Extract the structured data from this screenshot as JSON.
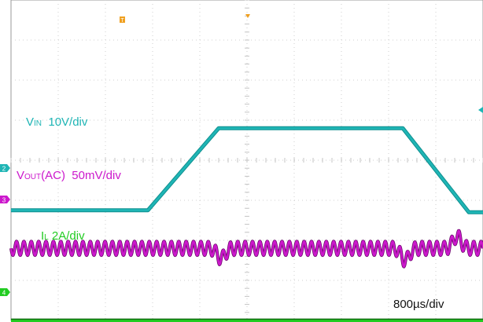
{
  "chart_data": {
    "type": "line",
    "title": "",
    "xlabel": "",
    "ylabel": "",
    "grid": true,
    "time_base": "800µs/div",
    "x_divisions": 10,
    "y_divisions": 8,
    "series": [
      {
        "name_main": "V",
        "name_sub": "IN",
        "scale": "10V/div",
        "color": "#1fb5b5",
        "x": [
          0,
          2.9,
          4.4,
          8.3,
          9.7,
          10
        ],
        "y": [
          5.25,
          5.25,
          3.2,
          3.2,
          5.3,
          5.3
        ]
      },
      {
        "name_main": "V",
        "name_sub": "OUT",
        "name_suffix": "(AC)",
        "scale": "50mV/div",
        "color": "#cc18cc",
        "mean_level_div": 6.2,
        "ripple_pk_pk_div": 0.35,
        "ripple_cycles": 64,
        "transients": [
          {
            "x": 4.45,
            "y": 6.45
          },
          {
            "x": 8.35,
            "y": 6.5
          },
          {
            "x": 9.45,
            "y": 5.9
          }
        ]
      },
      {
        "name_main": "I",
        "name_sub": "L",
        "scale": "2A/div",
        "color": "#22cc22",
        "x": [
          0,
          10
        ],
        "y": [
          8.05,
          8.05
        ]
      }
    ],
    "markers": {
      "trigger_time_label": "T",
      "ground_labels": [
        "2",
        "3",
        "4"
      ]
    }
  }
}
